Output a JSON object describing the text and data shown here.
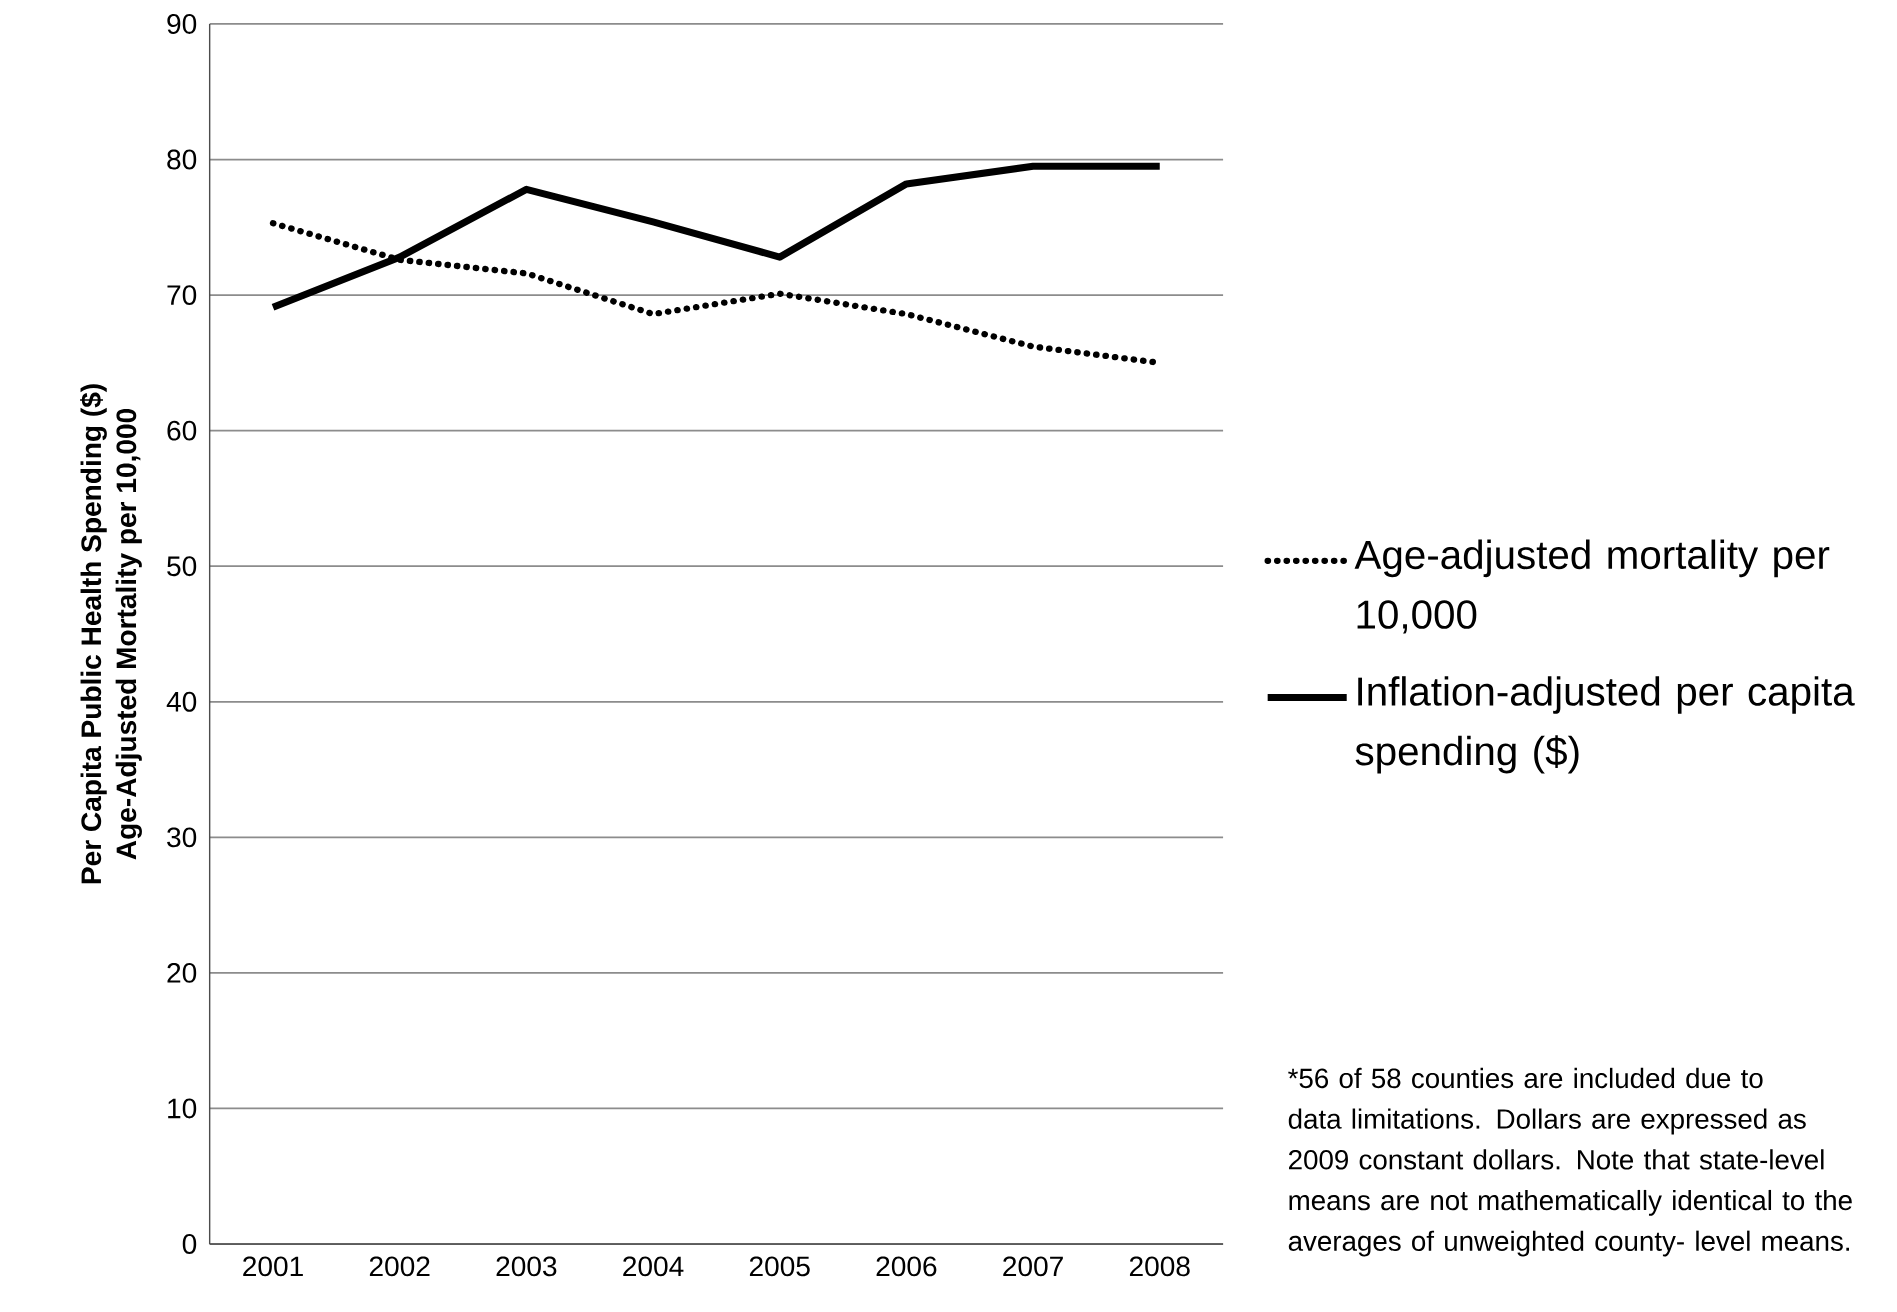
{
  "chart_data": {
    "type": "line",
    "ylabel": [
      "Per Capita Public Health Spending ($)",
      "Age-Adjusted Mortality per 10,000"
    ],
    "categories": [
      "2001",
      "2002",
      "2003",
      "2004",
      "2005",
      "2006",
      "2007",
      "2008"
    ],
    "series": [
      {
        "name": "Age-adjusted mortality per 10,000",
        "color": "#000000",
        "line_style": "dotted",
        "values": [
          75.3,
          72.6,
          71.6,
          68.6,
          70.1,
          68.6,
          66.2,
          65.0
        ]
      },
      {
        "name": "Inflation-adjusted per capita spending ($)",
        "color": "#000000",
        "line_style": "solid",
        "values": [
          69.1,
          72.8,
          77.8,
          75.4,
          72.8,
          78.2,
          79.5,
          79.5
        ]
      }
    ],
    "ylim": [
      0,
      90
    ],
    "yticks": [
      0,
      10,
      20,
      30,
      40,
      50,
      60,
      70,
      80,
      90
    ],
    "grid": "y",
    "legend": "right",
    "marker": "none",
    "annotations": [
      "*56 of 58 counties are included due to data limitations.  Dollars are expressed as 2009 constant dollars. Note that state-level means are not mathematically identical to the averages of unweighted county- level means."
    ]
  }
}
